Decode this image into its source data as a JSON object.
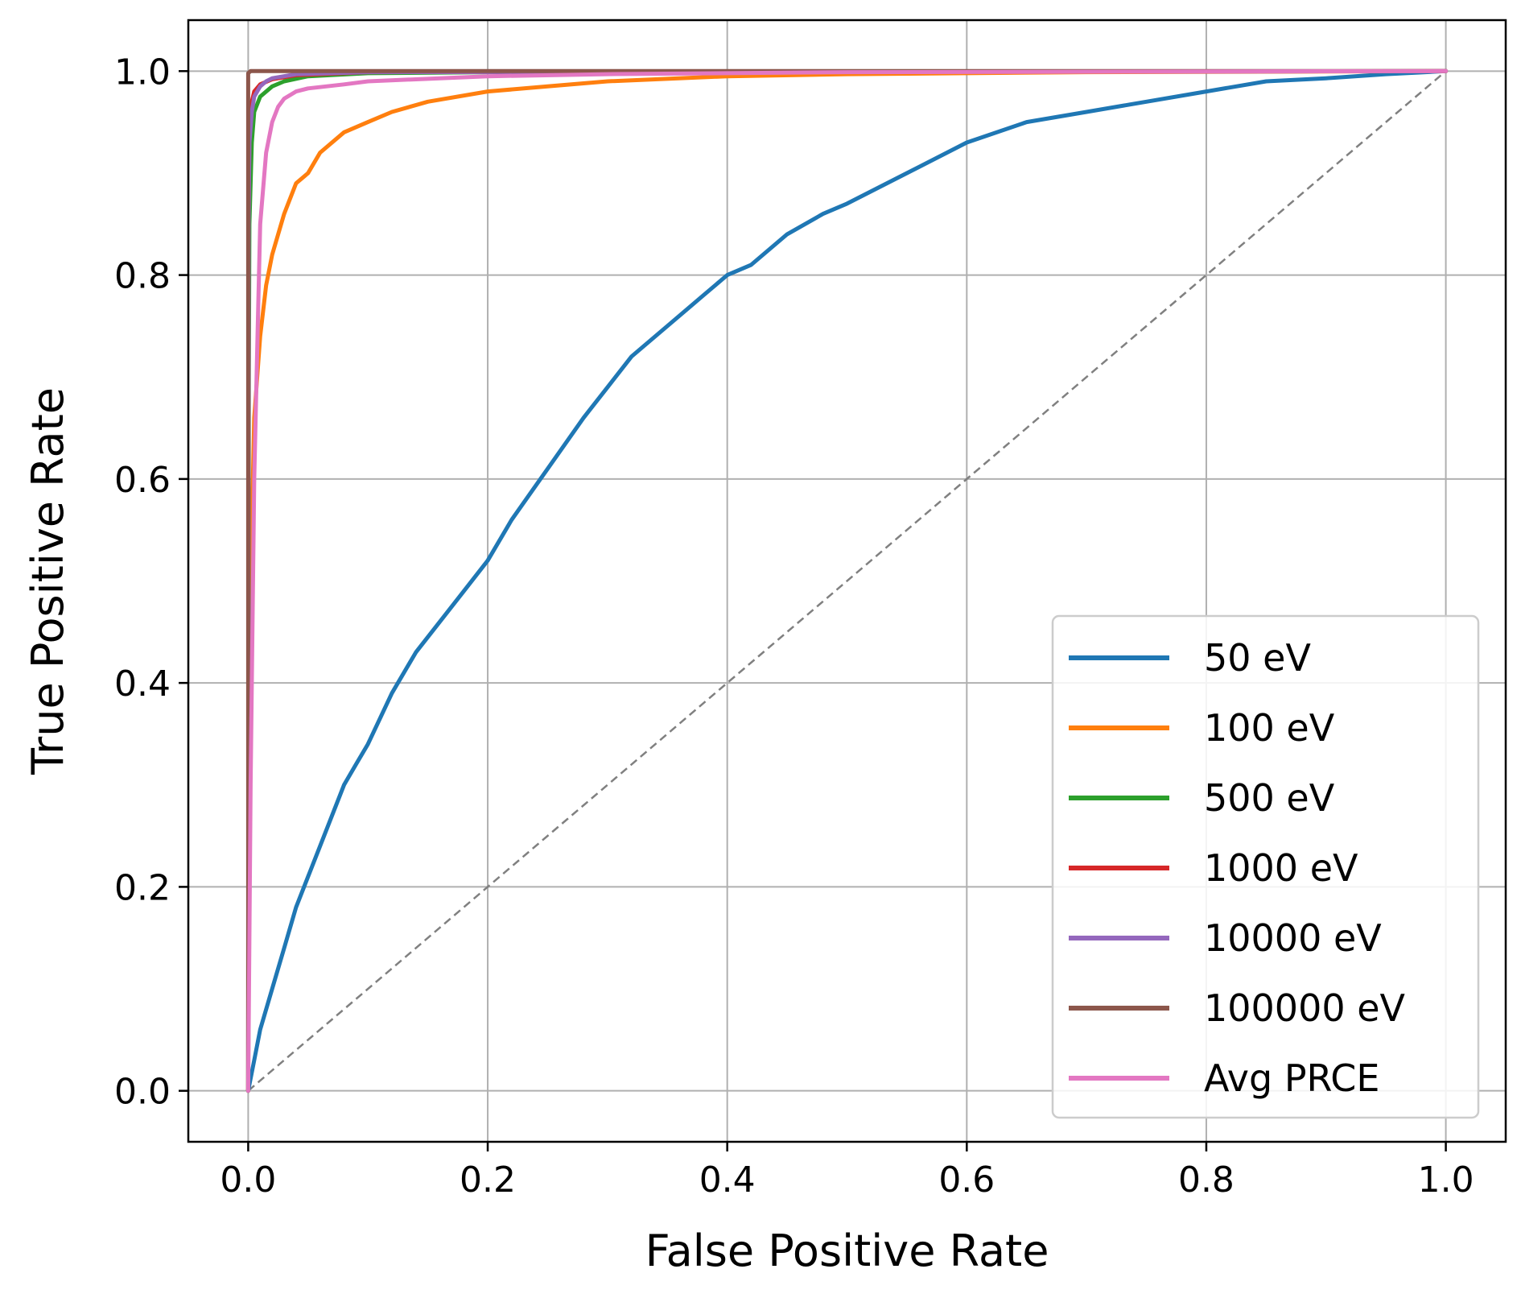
{
  "chart_data": {
    "type": "line",
    "xlabel": "False Positive Rate",
    "ylabel": "True Positive Rate",
    "xlim": [
      -0.05,
      1.05
    ],
    "ylim": [
      -0.05,
      1.05
    ],
    "xticks": [
      "0.0",
      "0.2",
      "0.4",
      "0.6",
      "0.8",
      "1.0"
    ],
    "yticks": [
      "0.0",
      "0.2",
      "0.4",
      "0.6",
      "0.8",
      "1.0"
    ],
    "grid": true,
    "legend_position": "lower-right",
    "reference_line": {
      "x": [
        0,
        1
      ],
      "y": [
        0,
        1
      ],
      "color": "#808080",
      "style": "dashed"
    },
    "series": [
      {
        "name": "50 eV",
        "color": "#1f77b4",
        "x": [
          0,
          0.005,
          0.01,
          0.02,
          0.03,
          0.04,
          0.05,
          0.06,
          0.07,
          0.08,
          0.09,
          0.1,
          0.12,
          0.14,
          0.16,
          0.18,
          0.2,
          0.22,
          0.25,
          0.28,
          0.3,
          0.32,
          0.35,
          0.38,
          0.4,
          0.42,
          0.45,
          0.48,
          0.5,
          0.55,
          0.6,
          0.65,
          0.7,
          0.75,
          0.8,
          0.85,
          0.9,
          0.95,
          1.0
        ],
        "y": [
          0,
          0.03,
          0.06,
          0.1,
          0.14,
          0.18,
          0.21,
          0.24,
          0.27,
          0.3,
          0.32,
          0.34,
          0.39,
          0.43,
          0.46,
          0.49,
          0.52,
          0.56,
          0.61,
          0.66,
          0.69,
          0.72,
          0.75,
          0.78,
          0.8,
          0.81,
          0.84,
          0.86,
          0.87,
          0.9,
          0.93,
          0.95,
          0.96,
          0.97,
          0.98,
          0.99,
          0.993,
          0.997,
          1.0
        ]
      },
      {
        "name": "100 eV",
        "color": "#ff7f0e",
        "x": [
          0,
          0.001,
          0.003,
          0.005,
          0.01,
          0.015,
          0.02,
          0.03,
          0.04,
          0.05,
          0.06,
          0.08,
          0.1,
          0.12,
          0.15,
          0.2,
          0.25,
          0.3,
          0.4,
          0.5,
          0.7,
          1.0
        ],
        "y": [
          0,
          0.3,
          0.55,
          0.66,
          0.74,
          0.79,
          0.82,
          0.86,
          0.89,
          0.9,
          0.92,
          0.94,
          0.95,
          0.96,
          0.97,
          0.98,
          0.985,
          0.99,
          0.995,
          0.997,
          0.999,
          1.0
        ]
      },
      {
        "name": "500 eV",
        "color": "#2ca02c",
        "x": [
          0,
          0.0005,
          0.001,
          0.003,
          0.005,
          0.01,
          0.02,
          0.03,
          0.05,
          0.1,
          0.2,
          1.0
        ],
        "y": [
          0,
          0.7,
          0.85,
          0.93,
          0.96,
          0.975,
          0.985,
          0.99,
          0.995,
          0.998,
          0.999,
          1.0
        ]
      },
      {
        "name": "1000 eV",
        "color": "#d62728",
        "x": [
          0,
          0.0003,
          0.001,
          0.003,
          0.005,
          0.01,
          0.02,
          0.04,
          0.1,
          1.0
        ],
        "y": [
          0,
          0.85,
          0.94,
          0.97,
          0.98,
          0.987,
          0.992,
          0.996,
          0.999,
          1.0
        ]
      },
      {
        "name": "10000 eV",
        "color": "#9467bd",
        "x": [
          0,
          0.0003,
          0.001,
          0.003,
          0.005,
          0.01,
          0.015,
          0.02,
          0.04,
          0.1,
          1.0
        ],
        "y": [
          0,
          0.85,
          0.93,
          0.96,
          0.975,
          0.985,
          0.99,
          0.993,
          0.997,
          0.999,
          1.0
        ]
      },
      {
        "name": "100000 eV",
        "color": "#8c564b",
        "x": [
          0,
          0,
          0.002,
          1.0
        ],
        "y": [
          0,
          0.998,
          1.0,
          1.0
        ]
      },
      {
        "name": "Avg PRCE",
        "color": "#e377c2",
        "x": [
          0,
          0.002,
          0.005,
          0.008,
          0.01,
          0.015,
          0.02,
          0.025,
          0.03,
          0.04,
          0.05,
          0.08,
          0.1,
          0.2,
          0.3,
          0.5,
          1.0
        ],
        "y": [
          0,
          0.3,
          0.6,
          0.75,
          0.85,
          0.92,
          0.95,
          0.965,
          0.973,
          0.98,
          0.983,
          0.987,
          0.99,
          0.995,
          0.997,
          0.999,
          1.0
        ]
      }
    ]
  }
}
